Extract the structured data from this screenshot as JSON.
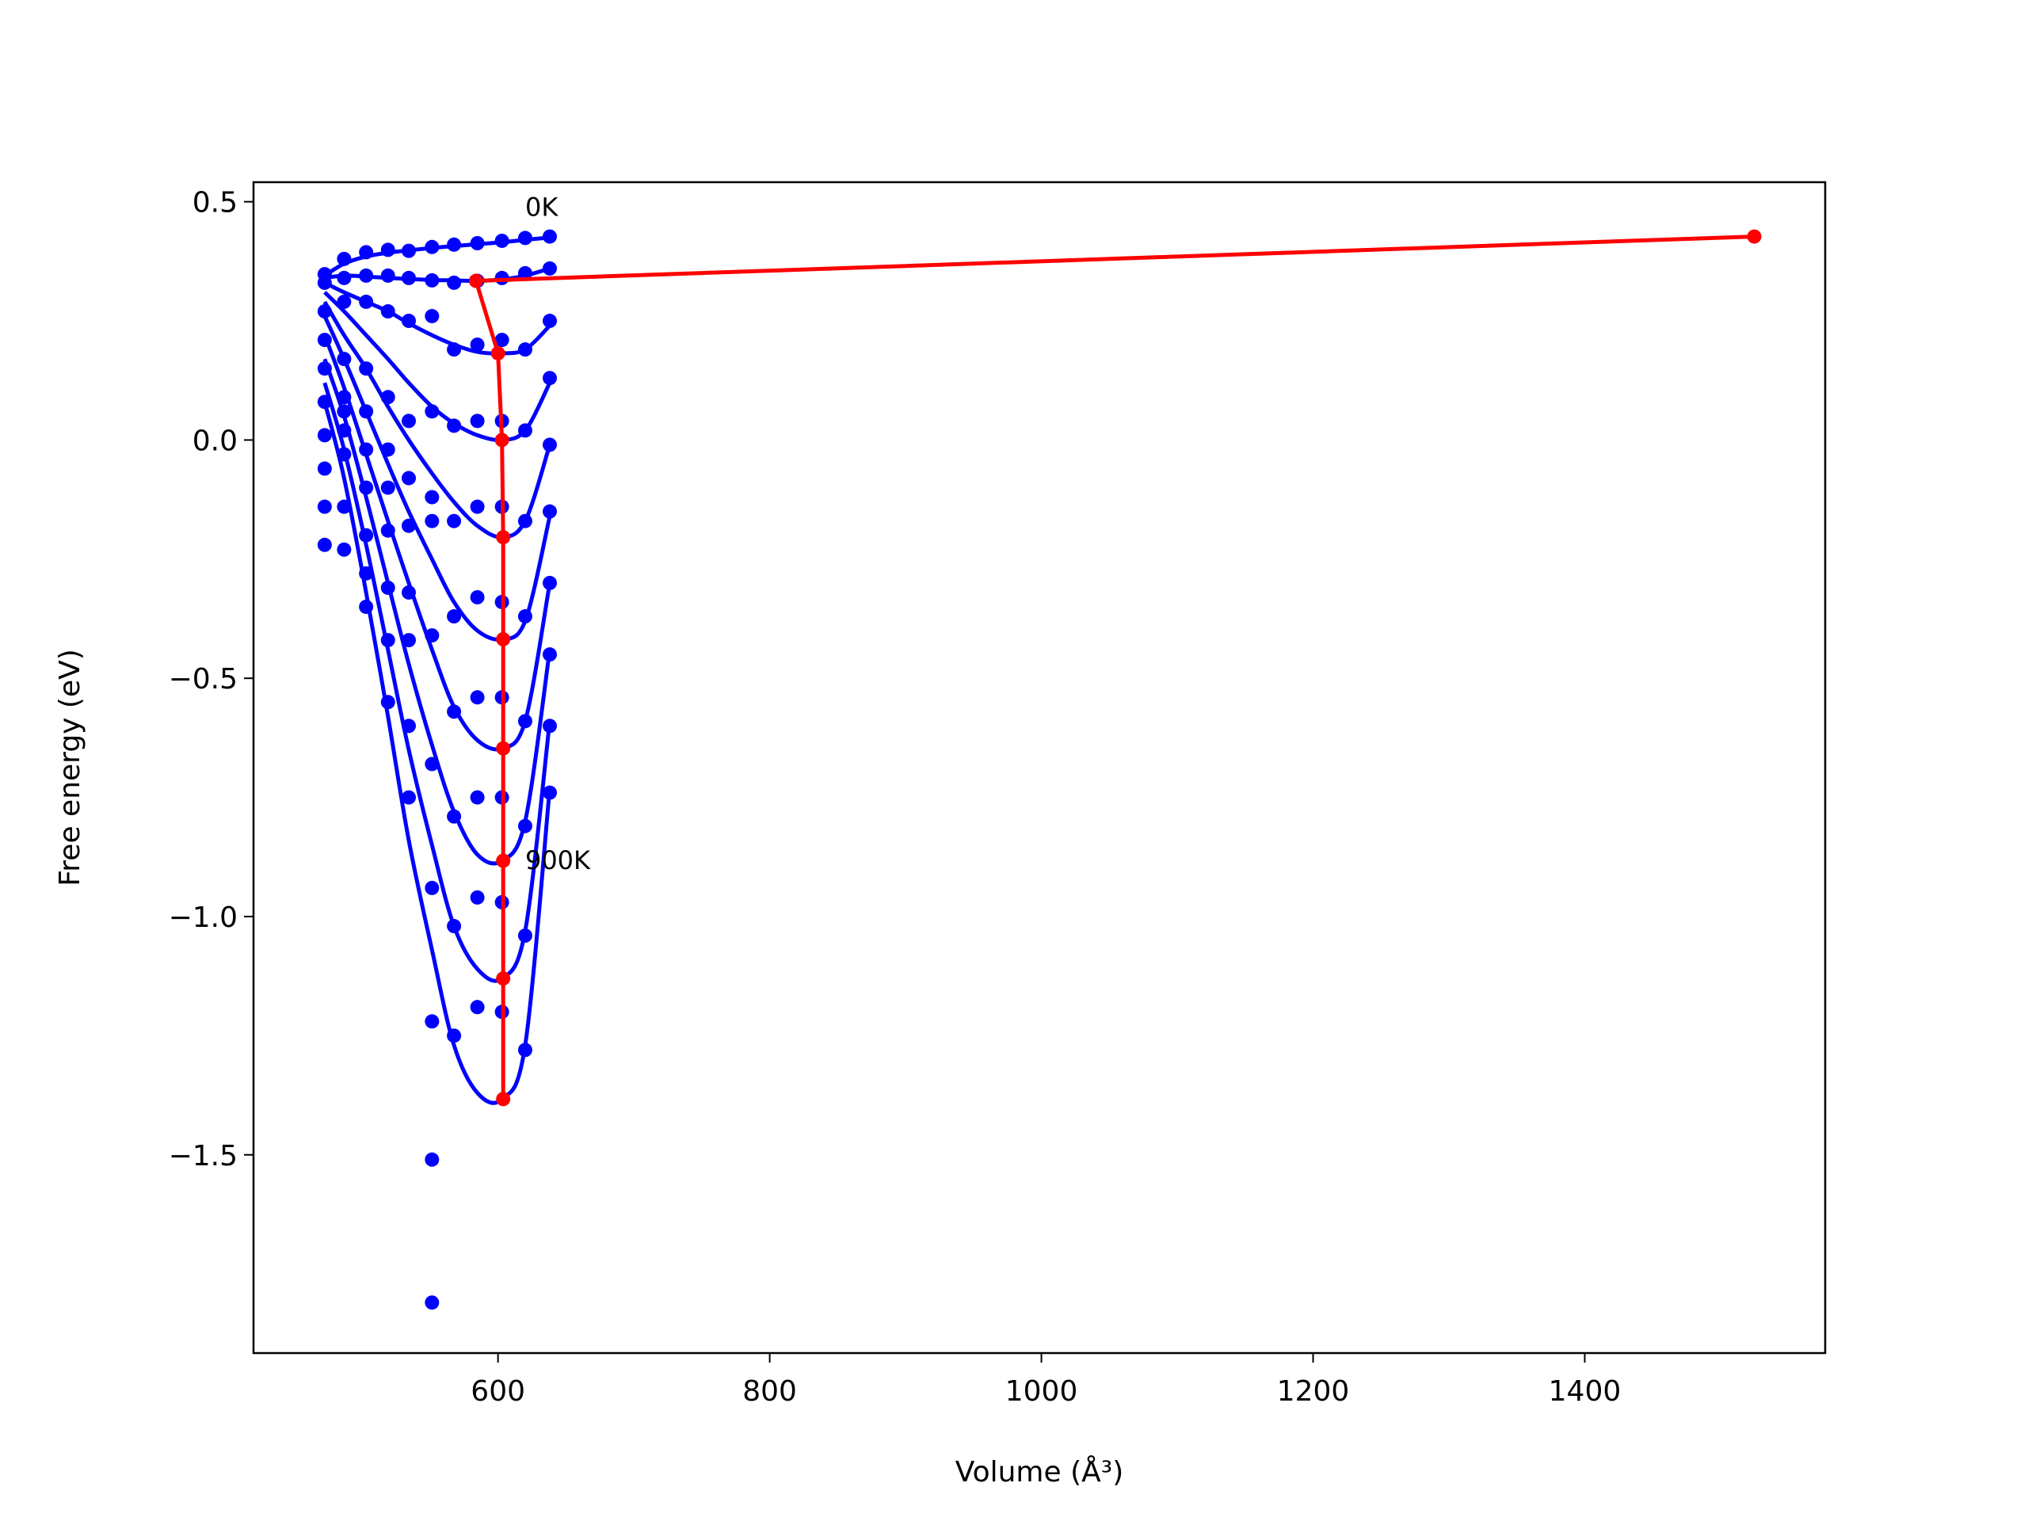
{
  "chart_data": {
    "type": "scatter",
    "xlabel": "Volume (Å³)",
    "ylabel": "Free energy (eV)",
    "xlim": [
      420,
      1577
    ],
    "ylim": [
      -1.916,
      0.541
    ],
    "xticks": [
      600,
      800,
      1000,
      1200,
      1400
    ],
    "yticks": [
      {
        "value": -1.5,
        "label": "−1.5"
      },
      {
        "value": -1.0,
        "label": "−1.0"
      },
      {
        "value": -0.5,
        "label": "−0.5"
      },
      {
        "value": 0,
        "label": "0.0"
      },
      0.5
    ],
    "x": [
      472.4,
      486.7,
      502.9,
      519,
      534.3,
      551.4,
      567.6,
      584.8,
      602.9,
      620,
      638.1
    ],
    "series": [
      {
        "color": "#0000ff",
        "values": [
          0.348,
          0.38,
          0.394,
          0.399,
          0.397,
          0.405,
          0.41,
          0.413,
          0.418,
          0.424,
          0.427
        ],
        "fit": [
          0.345,
          0.37,
          0.385,
          0.393,
          0.398,
          0.403,
          0.407,
          0.411,
          0.415,
          0.42,
          0.425
        ]
      },
      {
        "color": "#0000ff",
        "values": [
          0.33,
          0.34,
          0.345,
          0.345,
          0.34,
          0.335,
          0.33,
          0.334,
          0.34,
          0.35,
          0.36
        ],
        "fit": [
          0.34,
          0.345,
          0.343,
          0.34,
          0.338,
          0.336,
          0.335,
          0.334,
          0.337,
          0.345,
          0.36
        ]
      },
      {
        "color": "#0000ff",
        "values": [
          0.27,
          0.29,
          0.29,
          0.27,
          0.25,
          0.26,
          0.19,
          0.2,
          0.21,
          0.19,
          0.25
        ],
        "fit": [
          0.33,
          0.31,
          0.29,
          0.27,
          0.245,
          0.22,
          0.2,
          0.185,
          0.182,
          0.19,
          0.24
        ]
      },
      {
        "color": "#0000ff",
        "values": [
          0.21,
          0.17,
          0.15,
          0.09,
          0.04,
          0.06,
          0.03,
          0.04,
          0.04,
          0.02,
          0.13
        ],
        "fit": [
          0.31,
          0.27,
          0.22,
          0.17,
          0.12,
          0.07,
          0.035,
          0.01,
          0.0,
          0.02,
          0.12
        ]
      },
      {
        "color": "#0000ff",
        "values": [
          0.15,
          0.09,
          0.06,
          -0.02,
          -0.08,
          -0.12,
          -0.17,
          -0.14,
          -0.14,
          -0.17,
          -0.01
        ],
        "fit": [
          0.29,
          0.22,
          0.15,
          0.07,
          0.0,
          -0.07,
          -0.13,
          -0.18,
          -0.204,
          -0.17,
          -0.01
        ]
      },
      {
        "color": "#0000ff",
        "values": [
          0.08,
          0.06,
          -0.02,
          -0.1,
          -0.18,
          -0.17,
          -0.37,
          -0.33,
          -0.34,
          -0.37,
          -0.15
        ],
        "fit": [
          0.26,
          0.17,
          0.06,
          -0.05,
          -0.15,
          -0.25,
          -0.34,
          -0.4,
          -0.418,
          -0.38,
          -0.16
        ]
      },
      {
        "color": "#0000ff",
        "values": [
          0.01,
          0.02,
          -0.1,
          -0.19,
          -0.32,
          -0.41,
          -0.57,
          -0.54,
          -0.54,
          -0.59,
          -0.3
        ],
        "fit": [
          0.22,
          0.11,
          -0.03,
          -0.17,
          -0.3,
          -0.44,
          -0.56,
          -0.63,
          -0.647,
          -0.59,
          -0.3
        ]
      },
      {
        "color": "#0000ff",
        "values": [
          -0.06,
          -0.03,
          -0.2,
          -0.31,
          -0.42,
          -0.68,
          -0.79,
          -0.75,
          -0.75,
          -0.81,
          -0.45
        ],
        "fit": [
          0.17,
          0.05,
          -0.12,
          -0.3,
          -0.47,
          -0.64,
          -0.78,
          -0.87,
          -0.883,
          -0.8,
          -0.44
        ]
      },
      {
        "color": "#0000ff",
        "values": [
          -0.14,
          -0.14,
          -0.28,
          -0.42,
          -0.6,
          -0.94,
          -1.02,
          -0.96,
          -0.97,
          -1.04,
          -0.6
        ],
        "fit": [
          0.12,
          -0.02,
          -0.22,
          -0.44,
          -0.65,
          -0.85,
          -1.02,
          -1.11,
          -1.13,
          -1.03,
          -0.59
        ]
      },
      {
        "color": "#0000ff",
        "values": [
          -0.22,
          -0.23,
          -0.35,
          -0.55,
          -0.75,
          -1.22,
          -1.25,
          -1.19,
          -1.2,
          -1.28,
          -0.74
        ],
        "fit": [
          0.08,
          -0.08,
          -0.32,
          -0.58,
          -0.84,
          -1.07,
          -1.27,
          -1.37,
          -1.383,
          -1.27,
          -0.73
        ]
      }
    ],
    "outliers": {
      "color": "#0000ff",
      "x": [
        551.4,
        551.4
      ],
      "values": [
        -1.51,
        -1.81
      ]
    },
    "minima": {
      "color": "#ff0000",
      "x": [
        1524.8,
        583.8,
        600,
        602.9,
        603.8,
        603.8,
        603.8,
        603.8,
        603.8,
        603.8
      ],
      "values": [
        0.427,
        0.334,
        0.182,
        0.0,
        -0.204,
        -0.418,
        -0.647,
        -0.883,
        -1.13,
        -1.383
      ]
    },
    "annotations": [
      {
        "text": "0K",
        "x": 620,
        "y": 0.49
      },
      {
        "text": "900K",
        "x": 620,
        "y": -0.88
      }
    ]
  }
}
